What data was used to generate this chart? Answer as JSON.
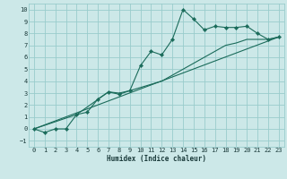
{
  "xlabel": "Humidex (Indice chaleur)",
  "bg_color": "#cce8e8",
  "grid_color": "#99cccc",
  "line_color": "#1a6b5a",
  "xlim": [
    -0.5,
    23.5
  ],
  "ylim": [
    -1.5,
    10.5
  ],
  "xticks": [
    0,
    1,
    2,
    3,
    4,
    5,
    6,
    7,
    8,
    9,
    10,
    11,
    12,
    13,
    14,
    15,
    16,
    17,
    18,
    19,
    20,
    21,
    22,
    23
  ],
  "yticks": [
    -1,
    0,
    1,
    2,
    3,
    4,
    5,
    6,
    7,
    8,
    9,
    10
  ],
  "series1_x": [
    0,
    1,
    2,
    3,
    4,
    5,
    6,
    7,
    8,
    9,
    10,
    11,
    12,
    13,
    14,
    15,
    16,
    17,
    18,
    19,
    20,
    21,
    22,
    23
  ],
  "series1_y": [
    0.0,
    -0.3,
    0.0,
    0.0,
    1.2,
    1.4,
    2.5,
    3.1,
    2.9,
    3.2,
    5.3,
    6.5,
    6.2,
    7.5,
    10.0,
    9.2,
    8.3,
    8.6,
    8.5,
    8.5,
    8.6,
    8.0,
    7.5,
    7.7
  ],
  "series2_x": [
    0,
    23
  ],
  "series2_y": [
    0.0,
    7.7
  ],
  "series3_x": [
    0,
    4,
    7,
    8,
    9,
    12,
    13,
    15,
    18,
    19,
    20,
    21,
    22,
    23
  ],
  "series3_y": [
    0.0,
    1.2,
    3.1,
    3.0,
    3.2,
    4.0,
    4.5,
    5.5,
    7.0,
    7.2,
    7.5,
    7.5,
    7.5,
    7.7
  ]
}
